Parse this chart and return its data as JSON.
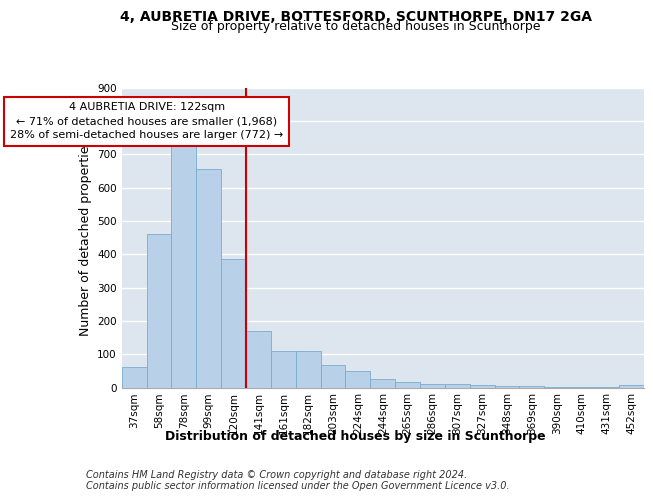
{
  "title1": "4, AUBRETIA DRIVE, BOTTESFORD, SCUNTHORPE, DN17 2GA",
  "title2": "Size of property relative to detached houses in Scunthorpe",
  "xlabel": "Distribution of detached houses by size in Scunthorpe",
  "ylabel": "Number of detached properties",
  "footer1": "Contains HM Land Registry data © Crown copyright and database right 2024.",
  "footer2": "Contains public sector information licensed under the Open Government Licence v3.0.",
  "categories": [
    "37sqm",
    "58sqm",
    "78sqm",
    "99sqm",
    "120sqm",
    "141sqm",
    "161sqm",
    "182sqm",
    "203sqm",
    "224sqm",
    "244sqm",
    "265sqm",
    "286sqm",
    "307sqm",
    "327sqm",
    "348sqm",
    "369sqm",
    "390sqm",
    "410sqm",
    "431sqm",
    "452sqm"
  ],
  "values": [
    62,
    462,
    740,
    655,
    385,
    170,
    110,
    110,
    68,
    50,
    25,
    18,
    10,
    10,
    8,
    5,
    5,
    3,
    3,
    3,
    8
  ],
  "bar_color": "#b8d0e8",
  "bar_edge_color": "#7aaccc",
  "vline_x": 4.5,
  "vline_color": "#cc0000",
  "annotation_line1": "4 AUBRETIA DRIVE: 122sqm",
  "annotation_line2": "← 71% of detached houses are smaller (1,968)",
  "annotation_line3": "28% of semi-detached houses are larger (772) →",
  "annotation_box_color": "white",
  "annotation_box_edge": "#cc0000",
  "ylim": [
    0,
    900
  ],
  "yticks": [
    0,
    100,
    200,
    300,
    400,
    500,
    600,
    700,
    800,
    900
  ],
  "background_color": "#dde6ef",
  "grid_color": "white",
  "title_fontsize": 10,
  "subtitle_fontsize": 9,
  "axis_label_fontsize": 9,
  "tick_fontsize": 7.5,
  "annotation_fontsize": 8,
  "footer_fontsize": 7
}
